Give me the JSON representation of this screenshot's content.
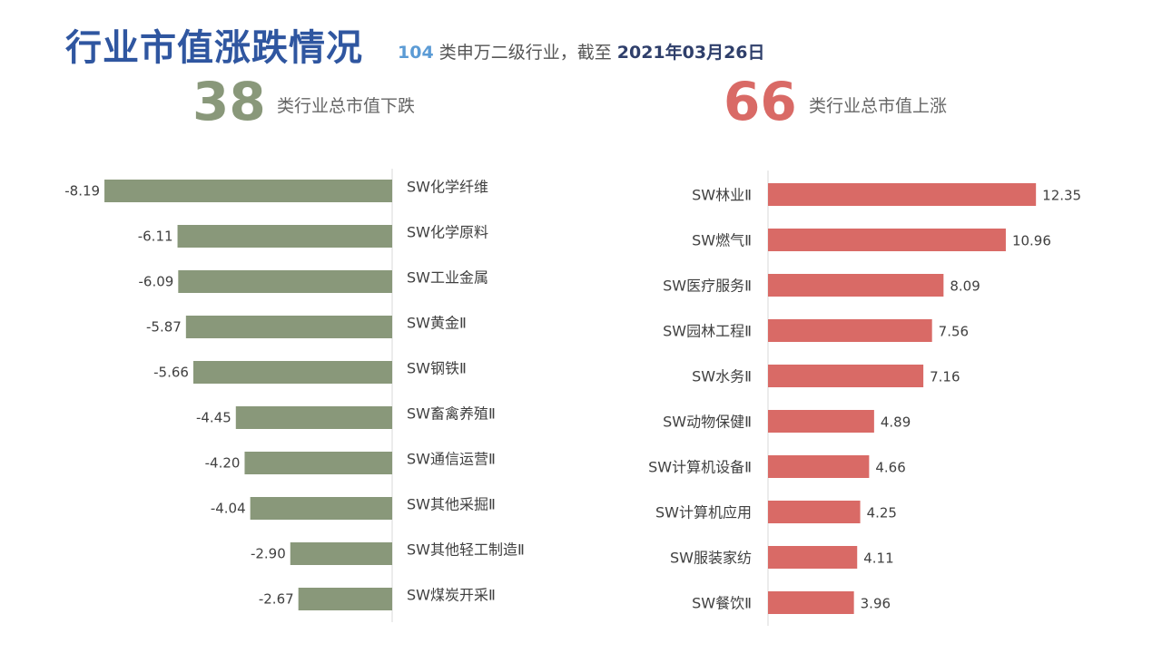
{
  "header": {
    "title": "行业市值涨跌情况",
    "subtitle_count": "104",
    "subtitle_text": " 类申万二级行业，截至 ",
    "subtitle_date": "2021年03月26日"
  },
  "summary": {
    "down_count": "38",
    "down_label": "类行业总市值下跌",
    "up_count": "66",
    "up_label": "类行业总市值上涨"
  },
  "colors": {
    "title": "#2f56a0",
    "down_bar": "#89987a",
    "up_bar": "#d96a66"
  },
  "chart_data": [
    {
      "type": "bar",
      "orientation": "horizontal",
      "categories": [
        "SW化学纤维",
        "SW化学原料",
        "SW工业金属",
        "SW黄金Ⅱ",
        "SW钢铁Ⅱ",
        "SW畜禽养殖Ⅱ",
        "SW通信运营Ⅱ",
        "SW其他采掘Ⅱ",
        "SW其他轻工制造Ⅱ",
        "SW煤炭开采Ⅱ"
      ],
      "values": [
        -8.19,
        -6.11,
        -6.09,
        -5.87,
        -5.66,
        -4.45,
        -4.2,
        -4.04,
        -2.9,
        -2.67
      ],
      "value_labels": [
        "-8.19",
        "-6.11",
        "-6.09",
        "-5.87",
        "-5.66",
        "-4.45",
        "-4.20",
        "-4.04",
        "-2.90",
        "-2.67"
      ]
    },
    {
      "type": "bar",
      "orientation": "horizontal",
      "categories": [
        "SW林业Ⅱ",
        "SW燃气Ⅱ",
        "SW医疗服务Ⅱ",
        "SW园林工程Ⅱ",
        "SW水务Ⅱ",
        "SW动物保健Ⅱ",
        "SW计算机设备Ⅱ",
        "SW计算机应用",
        "SW服装家纺",
        "SW餐饮Ⅱ"
      ],
      "values": [
        12.35,
        10.96,
        8.09,
        7.56,
        7.16,
        4.89,
        4.66,
        4.25,
        4.11,
        3.96
      ],
      "value_labels": [
        "12.35",
        "10.96",
        "8.09",
        "7.56",
        "7.16",
        "4.89",
        "4.66",
        "4.25",
        "4.11",
        "3.96"
      ]
    }
  ]
}
